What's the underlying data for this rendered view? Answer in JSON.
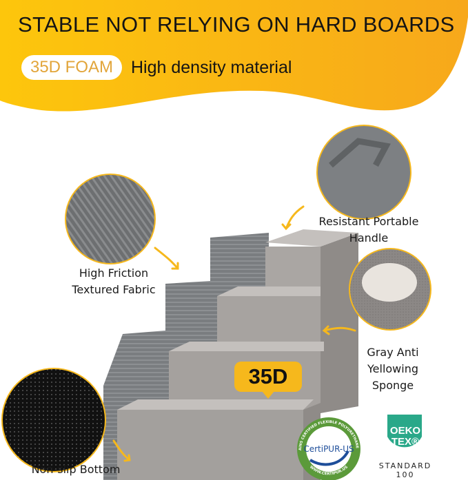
{
  "header": {
    "title": "STABLE NOT RELYING ON HARD BOARDS",
    "badge": "35D FOAM",
    "subtitle": "High density material"
  },
  "callouts": [
    {
      "label_line1": "High Friction",
      "label_line2": "Textured Fabric",
      "icon": "fabric-texture"
    },
    {
      "label_line1": "Resistant Portable",
      "label_line2": "Handle",
      "icon": "handle"
    },
    {
      "label_line1": "Gray Anti",
      "label_line2": "Yellowing",
      "label_line3": "Sponge",
      "icon": "paw-on-sponge"
    },
    {
      "label_line1": "Non-slip Bottom",
      "icon": "non-slip-mesh"
    }
  ],
  "density_tag": "35D",
  "certifications": {
    "certipur": {
      "name": "CertiPUR-US",
      "ring_top": "CONTAINS CERTIFIED FLEXIBLE POLYURETHANE FOAM",
      "ring_bottom": "WWW.CERTIPUR.US"
    },
    "oeko": {
      "line1": "OEKO",
      "line2": "TEX®",
      "standard": "STANDARD",
      "number": "100"
    }
  },
  "colors": {
    "accent": "#f6b81c",
    "foam": "#a8a4a1",
    "fabric": "#7b7e81",
    "oeko_green": "#2aa889",
    "certipur_green": "#5b9a3a"
  }
}
